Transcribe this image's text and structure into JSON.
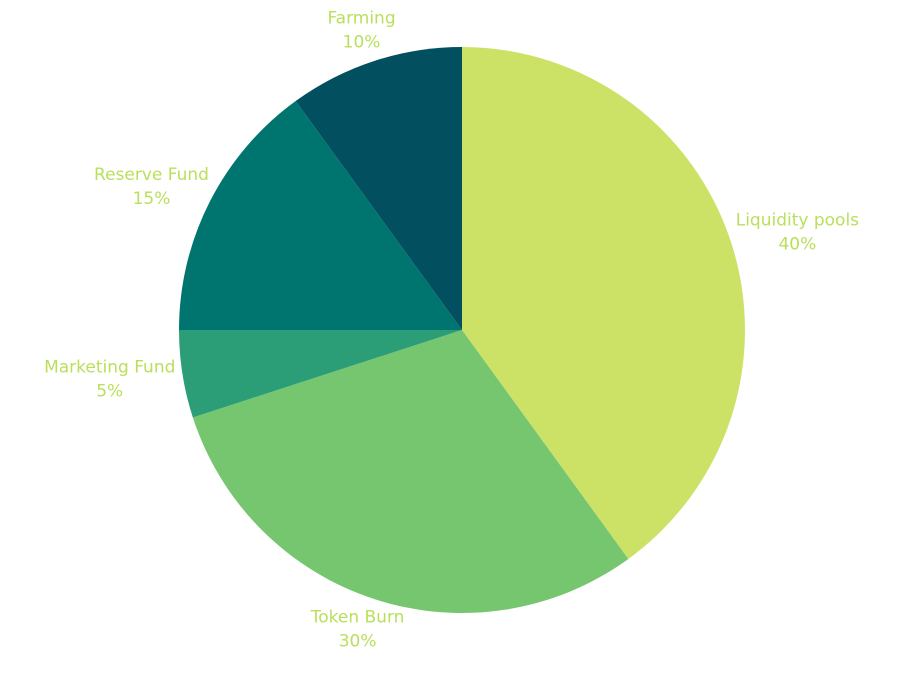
{
  "chart_data": {
    "type": "pie",
    "categories": [
      "Liquidity pools",
      "Token Burn",
      "Marketing Fund",
      "Reserve Fund",
      "Farming"
    ],
    "values": [
      40,
      30,
      5,
      15,
      10
    ],
    "value_labels": [
      "40%",
      "30%",
      "5%",
      "15%",
      "10%"
    ],
    "colors": [
      "#cce266",
      "#76c56f",
      "#2b9e78",
      "#00756f",
      "#024f5f"
    ]
  }
}
